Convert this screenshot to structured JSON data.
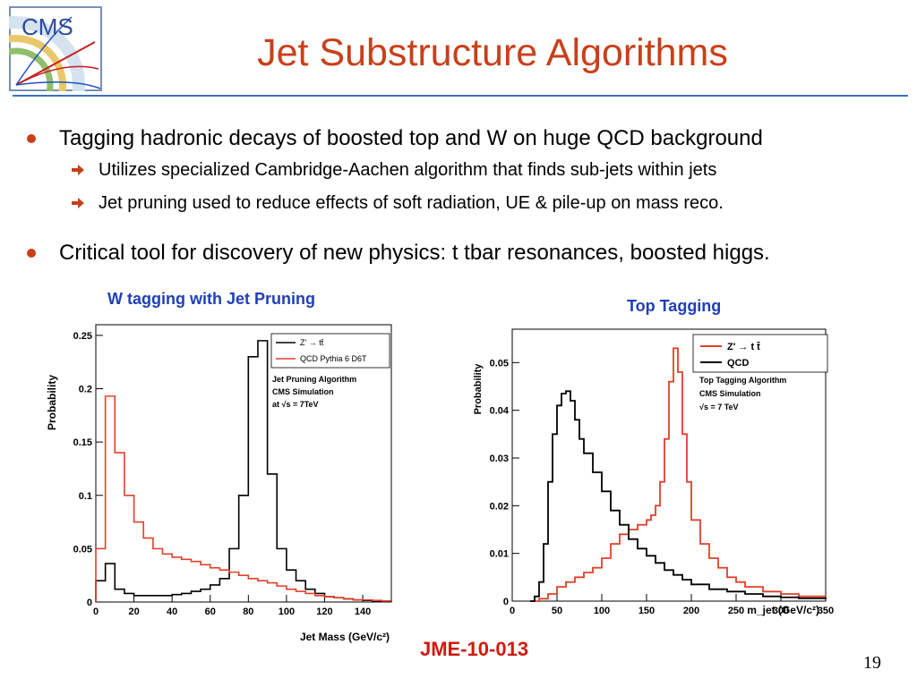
{
  "slide": {
    "title": "Jet Substructure Algorithms",
    "logo_text": "CMS",
    "page_number": "19",
    "reference": "JME-10-013",
    "accent_color": "#c8401a",
    "rule_color": "#3a6ec8"
  },
  "bullets": [
    {
      "text": "Tagging hadronic decays of boosted top and W on huge QCD background",
      "subitems": [
        "Utilizes specialized Cambridge-Aachen algorithm that finds sub-jets within jets",
        "Jet pruning used to reduce effects of soft radiation, UE & pile-up on mass reco."
      ]
    },
    {
      "text": "Critical tool for discovery of new physics: t tbar resonances, boosted higgs.",
      "subitems": []
    }
  ],
  "chart_data": [
    {
      "type": "line",
      "heading": "W tagging with Jet Pruning",
      "xlabel": "Jet Mass (GeV/c²)",
      "ylabel": "Probability",
      "xlim": [
        0,
        155
      ],
      "ylim": [
        0,
        0.26
      ],
      "xticks": [
        0,
        20,
        40,
        60,
        80,
        100,
        120,
        140
      ],
      "xtick_labels": [
        "0",
        "20",
        "40",
        "60",
        "80",
        "100",
        "120",
        "140"
      ],
      "yticks": [
        0,
        0.05,
        0.1,
        0.15,
        0.2,
        0.25
      ],
      "ytick_labels": [
        "0",
        "0.05",
        "0.1",
        "0.15",
        "0.2",
        "0.25"
      ],
      "legend_position": "top-right",
      "annotations": [
        "Jet Pruning Algorithm",
        "CMS Simulation",
        "at √s = 7TeV"
      ],
      "series": [
        {
          "name": "Z' → tt̄",
          "color": "#000000",
          "x": [
            0,
            5,
            10,
            15,
            20,
            25,
            30,
            35,
            40,
            45,
            50,
            55,
            60,
            65,
            70,
            75,
            80,
            85,
            90,
            95,
            100,
            105,
            110,
            115,
            120,
            125,
            130,
            135,
            140,
            145,
            150,
            155
          ],
          "y": [
            0.02,
            0.036,
            0.012,
            0.008,
            0.006,
            0.006,
            0.006,
            0.006,
            0.007,
            0.008,
            0.01,
            0.012,
            0.016,
            0.022,
            0.05,
            0.1,
            0.23,
            0.245,
            0.12,
            0.05,
            0.03,
            0.02,
            0.012,
            0.008,
            0.005,
            0.004,
            0.003,
            0.002,
            0.0015,
            0.001,
            0.0008,
            0.0005
          ]
        },
        {
          "name": "QCD Pythia 6 D6T",
          "color": "#e0402a",
          "x": [
            0,
            5,
            10,
            15,
            20,
            25,
            30,
            35,
            40,
            45,
            50,
            55,
            60,
            65,
            70,
            75,
            80,
            85,
            90,
            95,
            100,
            105,
            110,
            115,
            120,
            125,
            130,
            135,
            140,
            145,
            150,
            155
          ],
          "y": [
            0.05,
            0.193,
            0.14,
            0.1,
            0.075,
            0.06,
            0.05,
            0.045,
            0.042,
            0.04,
            0.038,
            0.035,
            0.032,
            0.03,
            0.028,
            0.025,
            0.022,
            0.02,
            0.018,
            0.015,
            0.012,
            0.01,
            0.008,
            0.006,
            0.005,
            0.004,
            0.003,
            0.002,
            0.002,
            0.0015,
            0.001,
            0.001
          ]
        }
      ]
    },
    {
      "type": "line",
      "heading": "Top Tagging",
      "xlabel": "m_jet (GeV/c²)",
      "ylabel": "Probability",
      "xlim": [
        0,
        350
      ],
      "ylim": [
        0,
        0.057
      ],
      "xticks": [
        0,
        50,
        100,
        150,
        200,
        250,
        300,
        350
      ],
      "xtick_labels": [
        "0",
        "50",
        "100",
        "150",
        "200",
        "250",
        "300",
        "350"
      ],
      "yticks": [
        0,
        0.01,
        0.02,
        0.03,
        0.04,
        0.05
      ],
      "ytick_labels": [
        "0",
        "0.01",
        "0.02",
        "0.03",
        "0.04",
        "0.05"
      ],
      "legend_position": "top-right",
      "annotations": [
        "Top Tagging Algorithm",
        "CMS Simulation",
        "√s = 7 TeV"
      ],
      "series": [
        {
          "name": "Z' → t t̄",
          "color": "#e0402a",
          "x": [
            20,
            30,
            40,
            50,
            60,
            70,
            80,
            90,
            100,
            110,
            120,
            130,
            140,
            150,
            155,
            160,
            165,
            170,
            175,
            180,
            185,
            190,
            195,
            200,
            210,
            220,
            230,
            240,
            250,
            260,
            280,
            300,
            320,
            350
          ],
          "y": [
            0.0,
            0.0005,
            0.0015,
            0.003,
            0.004,
            0.005,
            0.006,
            0.007,
            0.009,
            0.012,
            0.014,
            0.015,
            0.016,
            0.017,
            0.018,
            0.02,
            0.025,
            0.034,
            0.046,
            0.053,
            0.048,
            0.035,
            0.025,
            0.017,
            0.012,
            0.009,
            0.007,
            0.005,
            0.004,
            0.003,
            0.002,
            0.0015,
            0.001,
            0.0006
          ]
        },
        {
          "name": "QCD",
          "color": "#000000",
          "x": [
            20,
            25,
            30,
            35,
            40,
            45,
            50,
            55,
            60,
            65,
            70,
            75,
            80,
            90,
            100,
            110,
            120,
            130,
            140,
            150,
            160,
            170,
            180,
            190,
            200,
            220,
            240,
            260,
            280,
            300,
            320,
            350
          ],
          "y": [
            0.0,
            0.001,
            0.004,
            0.012,
            0.025,
            0.035,
            0.041,
            0.0435,
            0.044,
            0.042,
            0.038,
            0.034,
            0.031,
            0.027,
            0.023,
            0.019,
            0.016,
            0.013,
            0.011,
            0.0095,
            0.008,
            0.0065,
            0.0055,
            0.0045,
            0.0035,
            0.0025,
            0.002,
            0.0015,
            0.001,
            0.0008,
            0.0006,
            0.0004
          ]
        }
      ]
    }
  ]
}
